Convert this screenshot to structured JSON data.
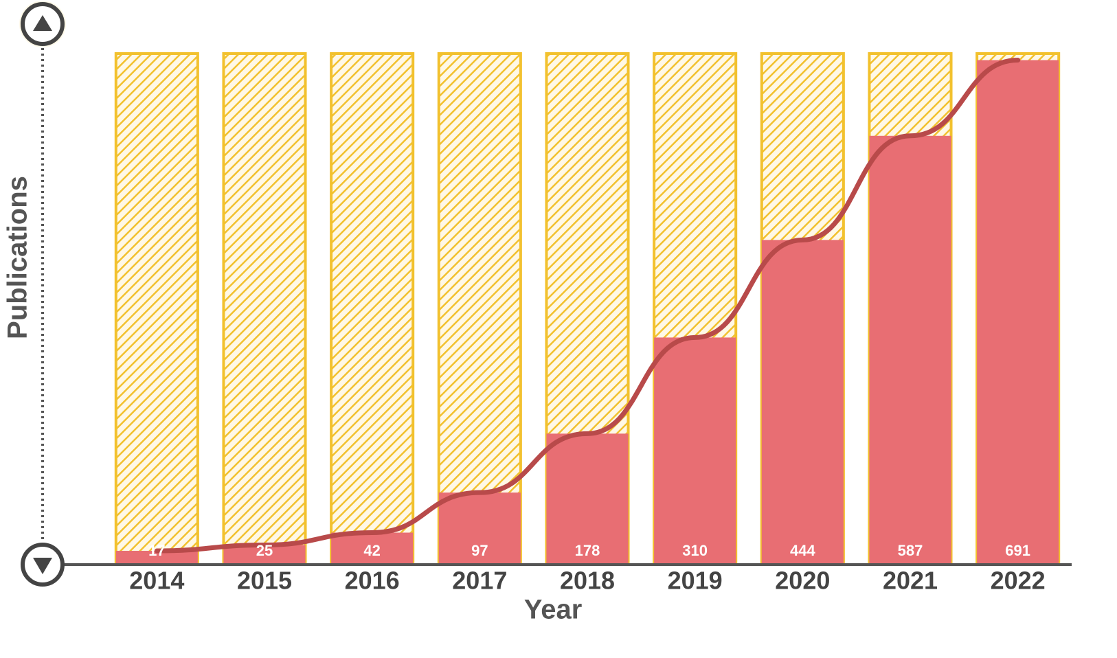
{
  "chart_data": {
    "type": "bar",
    "x_label": "Year",
    "y_label": "Publications",
    "categories": [
      "2014",
      "2015",
      "2016",
      "2017",
      "2018",
      "2019",
      "2020",
      "2021",
      "2022"
    ],
    "values": [
      17,
      25,
      42,
      97,
      178,
      310,
      444,
      587,
      691
    ],
    "color": "#e86e73",
    "background_color": "#f2c12e",
    "trend_color": "#b84a4a",
    "ylim": [
      0,
      700
    ]
  }
}
